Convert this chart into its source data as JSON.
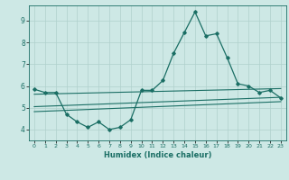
{
  "title": "",
  "xlabel": "Humidex (Indice chaleur)",
  "ylabel": "",
  "background_color": "#cde8e5",
  "grid_color": "#afd0cc",
  "line_color": "#1a6e64",
  "xlim": [
    -0.5,
    23.5
  ],
  "ylim": [
    3.5,
    9.7
  ],
  "yticks": [
    4,
    5,
    6,
    7,
    8,
    9
  ],
  "xticks": [
    0,
    1,
    2,
    3,
    4,
    5,
    6,
    7,
    8,
    9,
    10,
    11,
    12,
    13,
    14,
    15,
    16,
    17,
    18,
    19,
    20,
    21,
    22,
    23
  ],
  "series": [
    {
      "x": [
        0,
        1,
        2,
        3,
        4,
        5,
        6,
        7,
        8,
        9,
        10,
        11,
        12,
        13,
        14,
        15,
        16,
        17,
        18,
        19,
        20,
        21,
        22,
        23
      ],
      "y": [
        5.85,
        5.7,
        5.7,
        4.7,
        4.35,
        4.1,
        4.35,
        4.0,
        4.1,
        4.45,
        5.8,
        5.8,
        6.25,
        7.5,
        8.45,
        9.4,
        8.3,
        8.4,
        7.3,
        6.1,
        6.0,
        5.7,
        5.8,
        5.45
      ],
      "marker": "D",
      "markersize": 1.8,
      "linewidth": 0.9
    },
    {
      "x": [
        0,
        23
      ],
      "y": [
        5.62,
        5.88
      ],
      "marker": null,
      "linewidth": 0.8
    },
    {
      "x": [
        0,
        23
      ],
      "y": [
        5.05,
        5.48
      ],
      "marker": null,
      "linewidth": 0.8
    },
    {
      "x": [
        0,
        23
      ],
      "y": [
        4.82,
        5.28
      ],
      "marker": null,
      "linewidth": 0.8
    }
  ]
}
